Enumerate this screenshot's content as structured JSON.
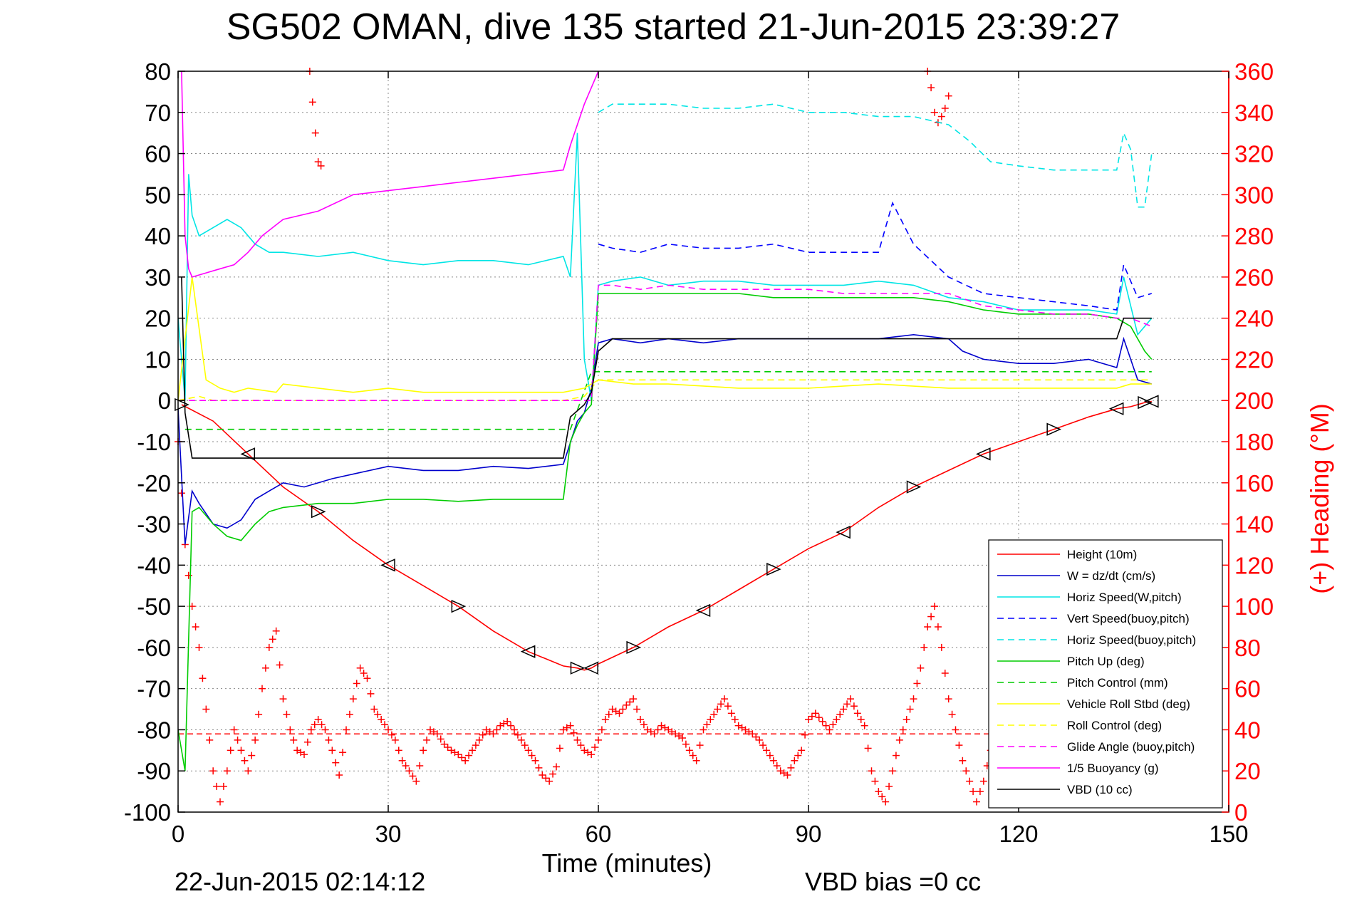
{
  "chart_data": {
    "type": "line",
    "title": "SG502 OMAN, dive 135 started 21-Jun-2015 23:39:27",
    "xlabel": "Time (minutes)",
    "ylabel": "",
    "y2label": "(+) Heading (°M)",
    "xlim": [
      0,
      150
    ],
    "ylim": [
      -100,
      80
    ],
    "y2lim": [
      0,
      360
    ],
    "xticks": [
      0,
      30,
      60,
      90,
      120,
      150
    ],
    "yticks": [
      80,
      70,
      60,
      50,
      40,
      30,
      20,
      10,
      0,
      -10,
      -20,
      -30,
      -40,
      -50,
      -60,
      -70,
      -80,
      -90,
      -100
    ],
    "y2ticks": [
      360,
      340,
      320,
      300,
      280,
      260,
      240,
      220,
      200,
      180,
      160,
      140,
      120,
      100,
      80,
      60,
      40,
      20,
      0
    ],
    "grid": true,
    "legend": "bottom-right",
    "footer_left": "22-Jun-2015 02:14:12",
    "footer_right": "VBD bias =0 cc",
    "series": [
      {
        "name": "Height (10m)",
        "color": "#ff0000",
        "style": "solid",
        "x": [
          0.5,
          5,
          10,
          15,
          20,
          25,
          30,
          35,
          40,
          45,
          50,
          55,
          57,
          58,
          59,
          60,
          65,
          70,
          75,
          80,
          85,
          90,
          95,
          100,
          105,
          110,
          115,
          120,
          125,
          130,
          134,
          136,
          138,
          139
        ],
        "y": [
          -1,
          -5,
          -13,
          -21,
          -27,
          -34,
          -40,
          -45,
          -50,
          -56,
          -61,
          -64.5,
          -65,
          -65.5,
          -65,
          -64,
          -60,
          -55,
          -51,
          -46,
          -41,
          -36,
          -32,
          -26,
          -21,
          -17,
          -13,
          -10,
          -7,
          -4,
          -2,
          -1.5,
          -0.5,
          -0.2
        ]
      },
      {
        "name": "W = dz/dt (cm/s)",
        "color": "#0000cc",
        "style": "solid",
        "x": [
          0,
          1,
          2,
          3,
          5,
          7,
          9,
          11,
          13,
          15,
          18,
          22,
          26,
          30,
          35,
          40,
          45,
          50,
          55,
          57,
          58,
          59,
          60,
          62,
          66,
          70,
          75,
          80,
          85,
          90,
          95,
          100,
          105,
          110,
          112,
          115,
          120,
          125,
          130,
          134,
          135,
          137,
          139
        ],
        "y": [
          -2,
          -35,
          -22,
          -25,
          -30,
          -31,
          -29,
          -24,
          -22,
          -20,
          -21,
          -19,
          -17.5,
          -16,
          -17,
          -17,
          -16,
          -16.5,
          -15.5,
          -5,
          -3,
          3,
          14,
          15,
          14,
          15,
          14,
          15,
          15,
          15,
          15,
          15,
          16,
          15,
          12,
          10,
          9,
          9,
          10,
          8,
          15,
          5,
          4
        ]
      },
      {
        "name": "Horiz Speed(W,pitch)",
        "color": "#00e5e5",
        "style": "solid",
        "x": [
          0,
          1,
          1.5,
          2,
          3,
          5,
          7,
          9,
          11,
          13,
          15,
          20,
          25,
          30,
          35,
          40,
          45,
          50,
          55,
          56,
          57,
          58,
          59,
          60,
          62,
          66,
          70,
          75,
          80,
          85,
          90,
          95,
          100,
          105,
          110,
          115,
          120,
          125,
          130,
          134,
          135,
          137,
          139
        ],
        "y": [
          20,
          0,
          55,
          45,
          40,
          42,
          44,
          42,
          38,
          36,
          36,
          35,
          36,
          34,
          33,
          34,
          34,
          33,
          35,
          30,
          65,
          10,
          0,
          28,
          29,
          30,
          28,
          29,
          29,
          28,
          28,
          28,
          29,
          28,
          25,
          24,
          22,
          22,
          22,
          21,
          30,
          16,
          20
        ]
      },
      {
        "name": "Vert Speed(buoy,pitch)",
        "color": "#0000ff",
        "style": "dashed",
        "x": [
          60,
          62,
          66,
          70,
          75,
          80,
          85,
          90,
          95,
          100,
          102,
          105,
          110,
          115,
          120,
          125,
          130,
          134,
          135,
          137,
          139
        ],
        "y": [
          38,
          37,
          36,
          38,
          37,
          37,
          38,
          36,
          36,
          36,
          48,
          38,
          30,
          26,
          25,
          24,
          23,
          22,
          33,
          25,
          26
        ]
      },
      {
        "name": "Horiz Speed(buoy,pitch)",
        "color": "#00e5e5",
        "style": "dashed",
        "x": [
          60,
          62,
          65,
          70,
          75,
          80,
          85,
          90,
          95,
          100,
          105,
          110,
          113,
          116,
          120,
          125,
          130,
          134,
          135,
          136,
          137,
          138,
          139
        ],
        "y": [
          70,
          72,
          72,
          72,
          71,
          71,
          72,
          70,
          70,
          69,
          69,
          67,
          63,
          58,
          57,
          56,
          56,
          56,
          65,
          61,
          47,
          47,
          60
        ]
      },
      {
        "name": "Pitch Up (deg)",
        "color": "#00cc00",
        "style": "solid",
        "x": [
          0,
          1,
          2,
          3,
          5,
          7,
          9,
          11,
          13,
          15,
          20,
          25,
          30,
          35,
          40,
          45,
          50,
          55,
          56,
          57,
          58,
          59,
          60,
          62,
          66,
          70,
          75,
          80,
          85,
          90,
          95,
          100,
          105,
          110,
          115,
          120,
          125,
          130,
          134,
          136,
          138,
          139
        ],
        "y": [
          -80,
          -90,
          -27,
          -26,
          -30,
          -33,
          -34,
          -30,
          -27,
          -26,
          -25,
          -25,
          -24,
          -24,
          -24.5,
          -24,
          -24,
          -24,
          -10,
          -6,
          -3,
          -1,
          26,
          26,
          26,
          26,
          26,
          26,
          25,
          25,
          25,
          25,
          25,
          24,
          22,
          21,
          21,
          21,
          20,
          18,
          12,
          10
        ]
      },
      {
        "name": "Pitch Control (mm)",
        "color": "#00cc00",
        "style": "dashed",
        "x": [
          1,
          55,
          56,
          59,
          60,
          139
        ],
        "y": [
          -7,
          -7,
          -7,
          7,
          7,
          7
        ]
      },
      {
        "name": "Vehicle Roll Stbd (deg)",
        "color": "#ffff00",
        "style": "solid",
        "x": [
          0,
          2,
          4,
          6,
          8,
          10,
          14,
          15,
          20,
          25,
          30,
          35,
          40,
          45,
          50,
          55,
          58,
          60,
          65,
          70,
          80,
          90,
          100,
          110,
          120,
          130,
          134,
          136,
          139
        ],
        "y": [
          0,
          30,
          5,
          3,
          2,
          3,
          2,
          4,
          3,
          2,
          3,
          2,
          2,
          2,
          2,
          2,
          3,
          5,
          4,
          4,
          3,
          3,
          4,
          3,
          3,
          3,
          3,
          4,
          4
        ]
      },
      {
        "name": "Roll Control (deg)",
        "color": "#ffff00",
        "style": "dashed",
        "x": [
          0,
          3,
          5,
          10,
          20,
          30,
          40,
          50,
          55,
          58,
          60,
          70,
          80,
          90,
          100,
          110,
          120,
          130,
          139
        ],
        "y": [
          0,
          1,
          0,
          0,
          0,
          0,
          0,
          0,
          0,
          1,
          5,
          5,
          5,
          5,
          5,
          5,
          5,
          5,
          5
        ]
      },
      {
        "name": "Glide Angle (buoy,pitch)",
        "color": "#ff00ff",
        "style": "dashed",
        "x": [
          0,
          55,
          57,
          58,
          59,
          60,
          62,
          66,
          70,
          75,
          80,
          85,
          90,
          95,
          100,
          105,
          110,
          115,
          120,
          125,
          130,
          134,
          136,
          139
        ],
        "y": [
          0,
          0,
          0,
          0,
          0,
          28,
          28,
          27,
          28,
          27,
          27,
          27,
          27,
          26,
          26,
          26,
          26,
          23,
          22,
          21,
          21,
          20,
          20,
          18
        ]
      },
      {
        "name": "1/5 Buoyancy (g)",
        "color": "#ff00ff",
        "style": "solid",
        "x": [
          0.5,
          1,
          1.5,
          2,
          4,
          6,
          8,
          10,
          12,
          15,
          20,
          25,
          30,
          35,
          40,
          45,
          50,
          55,
          56,
          58,
          60
        ],
        "y": [
          80,
          40,
          32,
          30,
          31,
          32,
          33,
          36,
          40,
          44,
          46,
          50,
          51,
          52,
          53,
          54,
          55,
          56,
          62,
          72,
          80
        ]
      },
      {
        "name": "VBD (10 cc)",
        "color": "#000000",
        "style": "solid",
        "x": [
          0.5,
          1,
          2,
          30,
          55,
          56,
          58,
          59,
          60,
          62,
          100,
          134,
          135,
          139
        ],
        "y": [
          30,
          -3,
          -14,
          -14,
          -14,
          -4,
          -1,
          2,
          12,
          15,
          15,
          15,
          20,
          20
        ]
      }
    ],
    "heading": {
      "name": "Heading",
      "axis": "right",
      "color": "#ff0000",
      "marker": "+",
      "mean_deg": 38,
      "x": [
        0,
        1,
        2,
        3,
        4,
        5,
        6,
        7,
        8,
        9,
        10,
        11,
        12,
        13,
        14,
        15,
        16,
        17,
        18,
        19,
        20,
        21,
        22,
        23,
        24,
        25,
        26,
        27,
        28,
        29,
        30,
        31,
        32,
        33,
        34,
        35,
        36,
        37,
        38,
        39,
        40,
        41,
        42,
        43,
        44,
        45,
        46,
        47,
        48,
        49,
        50,
        51,
        52,
        53,
        54,
        55,
        56,
        57,
        58,
        59,
        60,
        61,
        62,
        63,
        64,
        65,
        66,
        67,
        68,
        69,
        70,
        71,
        72,
        73,
        74,
        75,
        76,
        77,
        78,
        79,
        80,
        81,
        82,
        83,
        84,
        85,
        86,
        87,
        88,
        89,
        90,
        91,
        92,
        93,
        94,
        95,
        96,
        97,
        98,
        99,
        100,
        101,
        102,
        103,
        104,
        105,
        106,
        107,
        108,
        109,
        110,
        111,
        112,
        113,
        114,
        115,
        116,
        117,
        118,
        119,
        120,
        121,
        122,
        123,
        124,
        125,
        126,
        127,
        128,
        129,
        130,
        131,
        132,
        133,
        134,
        135,
        136,
        137,
        138,
        139
      ],
      "y": [
        180,
        130,
        100,
        80,
        50,
        20,
        5,
        20,
        40,
        30,
        20,
        35,
        60,
        80,
        88,
        55,
        40,
        30,
        28,
        40,
        45,
        40,
        30,
        18,
        40,
        55,
        70,
        65,
        50,
        45,
        40,
        35,
        25,
        20,
        15,
        30,
        40,
        38,
        33,
        30,
        28,
        25,
        30,
        35,
        40,
        38,
        42,
        44,
        40,
        35,
        30,
        25,
        18,
        15,
        22,
        40,
        42,
        35,
        30,
        28,
        35,
        45,
        50,
        48,
        52,
        55,
        45,
        40,
        38,
        42,
        40,
        38,
        36,
        30,
        25,
        40,
        45,
        50,
        55,
        48,
        42,
        40,
        38,
        35,
        30,
        25,
        20,
        18,
        25,
        30,
        45,
        48,
        44,
        40,
        45,
        50,
        55,
        48,
        42,
        20,
        10,
        5,
        20,
        35,
        45,
        55,
        70,
        90,
        100,
        80,
        55,
        40,
        25,
        15,
        5,
        15,
        30,
        40,
        35,
        28,
        35,
        40,
        45,
        42,
        38,
        35,
        40,
        42,
        40,
        38,
        35,
        30,
        28,
        32,
        35,
        38,
        40,
        38,
        36,
        35
      ],
      "upper_clusters": [
        {
          "x": [
            18.8,
            19.2,
            19.6,
            20,
            20.4
          ],
          "y": [
            360,
            345,
            330,
            316,
            314
          ]
        },
        {
          "x": [
            107,
            107.5,
            108,
            108.5,
            109,
            109.5,
            110
          ],
          "y": [
            360,
            352,
            340,
            335,
            338,
            342,
            348
          ]
        }
      ]
    }
  }
}
